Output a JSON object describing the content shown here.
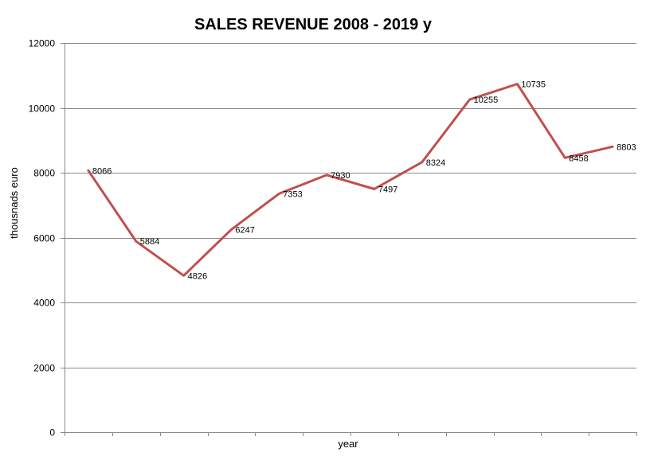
{
  "chart_data": {
    "type": "line",
    "title": "SALES REVENUE 2008 - 2019 y",
    "xlabel": "year",
    "ylabel": "thousnads euro",
    "ylim": [
      0,
      12000
    ],
    "yticks": [
      0,
      2000,
      4000,
      6000,
      8000,
      10000,
      12000
    ],
    "grid": true,
    "legend": "none",
    "series": [
      {
        "values": [
          8066,
          5884,
          4826,
          6247,
          7353,
          7930,
          7497,
          8324,
          10255,
          10735,
          8458,
          8803
        ],
        "labels": [
          "8066",
          "5884",
          "4826",
          "6247",
          "7353",
          "7930",
          "7497",
          "8324",
          "10255",
          "10735",
          "8458",
          "8803"
        ],
        "color": "#c0504d"
      }
    ]
  }
}
